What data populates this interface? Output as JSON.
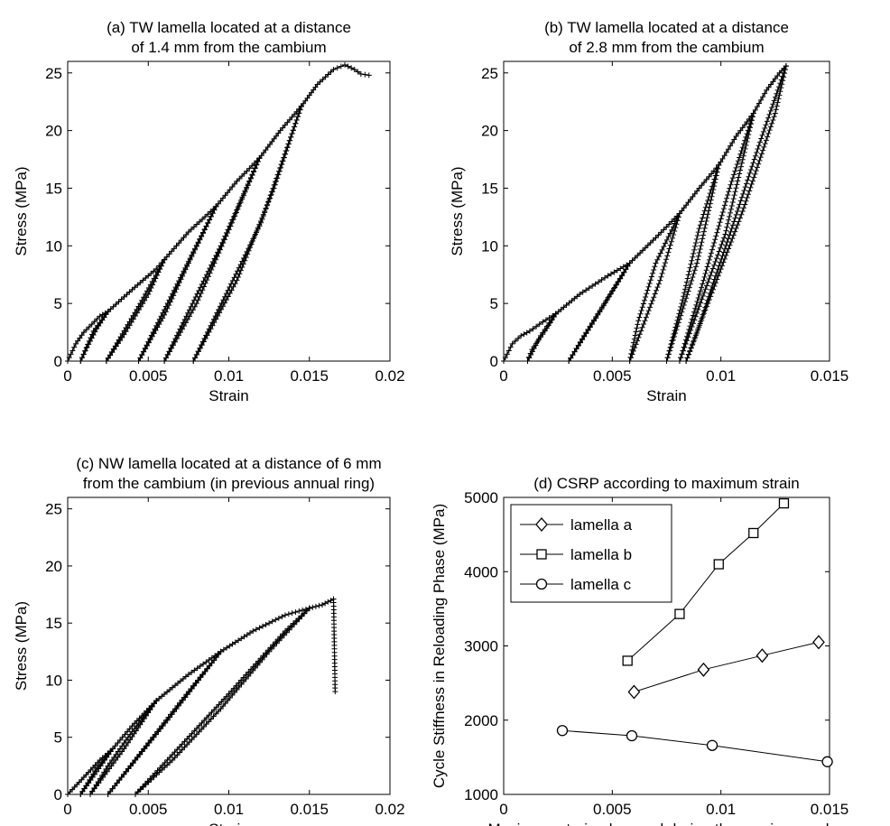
{
  "chart_data": [
    {
      "id": "a",
      "type": "line",
      "title_lines": [
        "(a) TW lamella located at a distance",
        "of 1.4 mm from the cambium"
      ],
      "xlabel": "Strain",
      "ylabel": "Stress (MPa)",
      "xlim": [
        0,
        0.02
      ],
      "ylim": [
        0,
        26
      ],
      "xticks": [
        0,
        0.005,
        0.01,
        0.015,
        0.02
      ],
      "xtick_labels": [
        "0",
        "0.005",
        "0.01",
        "0.015",
        "0.02"
      ],
      "yticks": [
        0,
        5,
        10,
        15,
        20,
        25
      ],
      "ytick_labels": [
        "0",
        "5",
        "10",
        "15",
        "20",
        "25"
      ],
      "marker": "plus",
      "series": [
        {
          "x": [
            0,
            0.0005,
            0.001,
            0.0015,
            0.002,
            0.0025
          ],
          "y": [
            0,
            1.5,
            2.5,
            3.2,
            3.9,
            4.3
          ]
        },
        {
          "x": [
            0.0025,
            0.0018,
            0.0012,
            0.0008
          ],
          "y": [
            4.3,
            2.8,
            1.2,
            0
          ]
        },
        {
          "x": [
            0.0008,
            0.0016,
            0.0025
          ],
          "y": [
            0,
            2.6,
            4.3
          ]
        },
        {
          "x": [
            0.0025,
            0.004,
            0.0055,
            0.006
          ],
          "y": [
            4.3,
            6.2,
            8.0,
            8.8
          ]
        },
        {
          "x": [
            0.006,
            0.005,
            0.0035,
            0.0024
          ],
          "y": [
            8.8,
            5.8,
            2.3,
            0
          ]
        },
        {
          "x": [
            0.0024,
            0.0045,
            0.006
          ],
          "y": [
            0,
            5.0,
            8.8
          ]
        },
        {
          "x": [
            0.006,
            0.0075,
            0.0092
          ],
          "y": [
            8.8,
            11.2,
            13.4
          ]
        },
        {
          "x": [
            0.0092,
            0.0075,
            0.006,
            0.0044
          ],
          "y": [
            13.4,
            8.5,
            4.0,
            0
          ]
        },
        {
          "x": [
            0.0044,
            0.0072,
            0.0092
          ],
          "y": [
            0,
            7.8,
            13.4
          ]
        },
        {
          "x": [
            0.0092,
            0.0105,
            0.0119
          ],
          "y": [
            13.4,
            15.6,
            17.6
          ]
        },
        {
          "x": [
            0.0119,
            0.0102,
            0.008,
            0.006
          ],
          "y": [
            17.6,
            12.0,
            5.0,
            0
          ]
        },
        {
          "x": [
            0.006,
            0.0095,
            0.0119
          ],
          "y": [
            0,
            10.0,
            17.6
          ]
        },
        {
          "x": [
            0.0119,
            0.0132,
            0.0145
          ],
          "y": [
            17.6,
            20.0,
            22.1
          ]
        },
        {
          "x": [
            0.0145,
            0.0128,
            0.0105,
            0.0078
          ],
          "y": [
            22.1,
            15.0,
            7.0,
            0
          ]
        },
        {
          "x": [
            0.0078,
            0.012,
            0.0145
          ],
          "y": [
            0,
            12.0,
            22.1
          ]
        },
        {
          "x": [
            0.0145,
            0.0155,
            0.0165,
            0.0172,
            0.0178,
            0.0182,
            0.0187
          ],
          "y": [
            22.1,
            24.0,
            25.3,
            25.7,
            25.3,
            24.9,
            24.8
          ]
        }
      ]
    },
    {
      "id": "b",
      "type": "line",
      "title_lines": [
        "(b) TW lamella located at a distance",
        "of 2.8 mm from the cambium"
      ],
      "xlabel": "Strain",
      "ylabel": "Stress (MPa)",
      "xlim": [
        0,
        0.015
      ],
      "ylim": [
        0,
        26
      ],
      "xticks": [
        0,
        0.005,
        0.01,
        0.015
      ],
      "xtick_labels": [
        "0",
        "0.005",
        "0.01",
        "0.015"
      ],
      "yticks": [
        0,
        5,
        10,
        15,
        20,
        25
      ],
      "ytick_labels": [
        "0",
        "5",
        "10",
        "15",
        "20",
        "25"
      ],
      "marker": "plus",
      "series": [
        {
          "x": [
            0,
            0.0004,
            0.0008,
            0.0012,
            0.0018,
            0.0024
          ],
          "y": [
            0,
            1.5,
            2.2,
            2.6,
            3.4,
            4.1
          ]
        },
        {
          "x": [
            0.0024,
            0.0019,
            0.0013,
            0.0011
          ],
          "y": [
            4.1,
            2.6,
            1.0,
            0
          ]
        },
        {
          "x": [
            0.0011,
            0.0017,
            0.0024
          ],
          "y": [
            0,
            2.2,
            4.1
          ]
        },
        {
          "x": [
            0.0024,
            0.0035,
            0.0048,
            0.0058
          ],
          "y": [
            4.1,
            5.8,
            7.4,
            8.5
          ]
        },
        {
          "x": [
            0.0058,
            0.0048,
            0.0037,
            0.003
          ],
          "y": [
            8.5,
            5.5,
            2.2,
            0
          ]
        },
        {
          "x": [
            0.003,
            0.0046,
            0.0058
          ],
          "y": [
            0,
            4.8,
            8.5
          ]
        },
        {
          "x": [
            0.0058,
            0.007,
            0.0081
          ],
          "y": [
            8.5,
            10.7,
            12.8
          ]
        },
        {
          "x": [
            0.0081,
            0.007,
            0.0062,
            0.0058
          ],
          "y": [
            12.8,
            8.5,
            3.5,
            0
          ]
        },
        {
          "x": [
            0.0058,
            0.0072,
            0.0081
          ],
          "y": [
            0,
            7.0,
            12.8
          ]
        },
        {
          "x": [
            0.0081,
            0.009,
            0.0099
          ],
          "y": [
            12.8,
            15.0,
            17.0
          ]
        },
        {
          "x": [
            0.0099,
            0.009,
            0.0082,
            0.0075
          ],
          "y": [
            17.0,
            11.5,
            5.0,
            0
          ]
        },
        {
          "x": [
            0.0075,
            0.0089,
            0.0099
          ],
          "y": [
            0,
            8.5,
            17.0
          ]
        },
        {
          "x": [
            0.0099,
            0.0107,
            0.0115
          ],
          "y": [
            17.0,
            19.5,
            21.5
          ]
        },
        {
          "x": [
            0.0115,
            0.0104,
            0.0092,
            0.0081
          ],
          "y": [
            21.5,
            15.0,
            7.0,
            0
          ]
        },
        {
          "x": [
            0.0081,
            0.0102,
            0.0115
          ],
          "y": [
            0,
            11.0,
            21.5
          ]
        },
        {
          "x": [
            0.0115,
            0.0121,
            0.0127,
            0.013
          ],
          "y": [
            21.5,
            23.5,
            25.0,
            25.6
          ]
        },
        {
          "x": [
            0.013,
            0.0118,
            0.0105,
            0.0096,
            0.0089,
            0.0084
          ],
          "y": [
            25.6,
            19.0,
            11.5,
            6.5,
            2.5,
            0
          ]
        },
        {
          "x": [
            0.0084,
            0.011,
            0.0125,
            0.013
          ],
          "y": [
            0,
            13.0,
            21.5,
            25.6
          ]
        }
      ]
    },
    {
      "id": "c",
      "type": "line",
      "title_lines": [
        "(c) NW lamella located at a distance of 6 mm",
        "from the cambium (in previous annual ring)"
      ],
      "xlabel": "Strain",
      "ylabel": "Stress (MPa)",
      "xlim": [
        0,
        0.02
      ],
      "ylim": [
        0,
        26
      ],
      "xticks": [
        0,
        0.005,
        0.01,
        0.015,
        0.02
      ],
      "xtick_labels": [
        "0",
        "0.005",
        "0.01",
        "0.015",
        "0.02"
      ],
      "yticks": [
        0,
        5,
        10,
        15,
        20,
        25
      ],
      "ytick_labels": [
        "0",
        "5",
        "10",
        "15",
        "20",
        "25"
      ],
      "marker": "plus",
      "series": [
        {
          "x": [
            0,
            0.001,
            0.002,
            0.0028
          ],
          "y": [
            0,
            1.5,
            3.0,
            4.0
          ]
        },
        {
          "x": [
            0.0028,
            0.0018,
            0.0008
          ],
          "y": [
            4.0,
            2.0,
            0
          ]
        },
        {
          "x": [
            0.0008,
            0.0018,
            0.0028
          ],
          "y": [
            0,
            2.3,
            4.0
          ]
        },
        {
          "x": [
            0.0028,
            0.004,
            0.0055
          ],
          "y": [
            4.0,
            6.0,
            8.2
          ]
        },
        {
          "x": [
            0.0055,
            0.004,
            0.0025,
            0.0014
          ],
          "y": [
            8.2,
            5.5,
            2.5,
            0
          ]
        },
        {
          "x": [
            0.0014,
            0.0035,
            0.0055
          ],
          "y": [
            0,
            4.0,
            8.2
          ]
        },
        {
          "x": [
            0.0055,
            0.0075,
            0.0095
          ],
          "y": [
            8.2,
            10.5,
            12.5
          ]
        },
        {
          "x": [
            0.0095,
            0.0075,
            0.005,
            0.0025
          ],
          "y": [
            12.5,
            9.0,
            4.5,
            0
          ]
        },
        {
          "x": [
            0.0025,
            0.0062,
            0.0095
          ],
          "y": [
            0,
            6.5,
            12.5
          ]
        },
        {
          "x": [
            0.0095,
            0.0115,
            0.0135,
            0.015
          ],
          "y": [
            12.5,
            14.3,
            15.7,
            16.3
          ]
        },
        {
          "x": [
            0.015,
            0.0125,
            0.0095,
            0.0065,
            0.0042
          ],
          "y": [
            16.3,
            12.5,
            7.5,
            3.0,
            0
          ]
        },
        {
          "x": [
            0.0042,
            0.01,
            0.0135,
            0.015
          ],
          "y": [
            0,
            8.8,
            14.3,
            16.3
          ]
        },
        {
          "x": [
            0.015,
            0.0158,
            0.0165
          ],
          "y": [
            16.3,
            16.6,
            17.1
          ]
        },
        {
          "x": [
            0.0165,
            0.0166
          ],
          "y": [
            17.1,
            9.0
          ]
        }
      ]
    },
    {
      "id": "d",
      "type": "line",
      "title_lines": [
        "(d) CSRP according to maximum strain"
      ],
      "xlabel": "Maximum strain observed during the previous cycles",
      "ylabel": "Cycle Stiffness in Reloading Phase (MPa)",
      "xlim": [
        0,
        0.015
      ],
      "ylim": [
        1000,
        5000
      ],
      "xticks": [
        0,
        0.005,
        0.01,
        0.015
      ],
      "xtick_labels": [
        "0",
        "0.005",
        "0.01",
        "0.015"
      ],
      "yticks": [
        1000,
        2000,
        3000,
        4000,
        5000
      ],
      "ytick_labels": [
        "1000",
        "2000",
        "3000",
        "4000",
        "5000"
      ],
      "legend_position": "top-left",
      "series": [
        {
          "name": "lamella a",
          "marker": "diamond",
          "x": [
            0.006,
            0.0092,
            0.0119,
            0.0145
          ],
          "y": [
            2380,
            2680,
            2870,
            3050
          ]
        },
        {
          "name": "lamella b",
          "marker": "square",
          "x": [
            0.0057,
            0.0081,
            0.0099,
            0.0115,
            0.0129
          ],
          "y": [
            2800,
            3430,
            4100,
            4520,
            4920
          ]
        },
        {
          "name": "lamella c",
          "marker": "circle",
          "x": [
            0.0027,
            0.0059,
            0.0096,
            0.0149
          ],
          "y": [
            1860,
            1790,
            1660,
            1440
          ]
        }
      ]
    }
  ]
}
